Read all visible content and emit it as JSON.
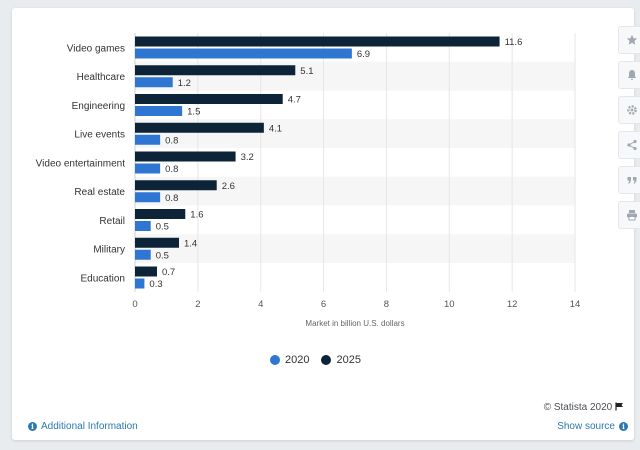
{
  "chart_data": {
    "type": "bar",
    "orientation": "horizontal",
    "categories": [
      "Video games",
      "Healthcare",
      "Engineering",
      "Live events",
      "Video entertainment",
      "Real estate",
      "Retail",
      "Military",
      "Education"
    ],
    "series": [
      {
        "name": "2025",
        "values": [
          11.6,
          5.1,
          4.7,
          4.1,
          3.2,
          2.6,
          1.6,
          1.4,
          0.7
        ],
        "color": "#0d2338"
      },
      {
        "name": "2020",
        "values": [
          6.9,
          1.2,
          1.5,
          0.8,
          0.8,
          0.8,
          0.5,
          0.5,
          0.3
        ],
        "color": "#2f76d2"
      }
    ],
    "xlabel": "Market in billion U.S. dollars",
    "xlim": [
      0,
      14
    ],
    "ticks": [
      0,
      2,
      4,
      6,
      8,
      10,
      12,
      14
    ],
    "grid": true,
    "legend_position": "bottom"
  },
  "legend": [
    {
      "label": "2020",
      "color": "#2f76d2"
    },
    {
      "label": "2025",
      "color": "#0d2338"
    }
  ],
  "credits": "© Statista 2020",
  "footer": {
    "additional_info": "Additional Information",
    "show_source": "Show source"
  },
  "toolbar": [
    "star-icon",
    "bell-icon",
    "gear-icon",
    "share-icon",
    "quote-icon",
    "print-icon"
  ]
}
